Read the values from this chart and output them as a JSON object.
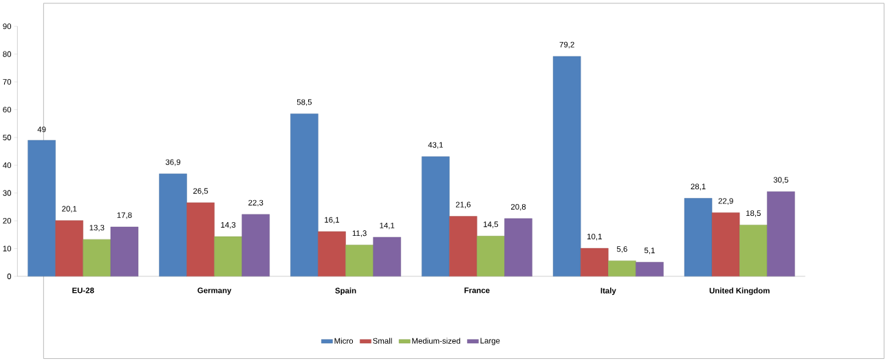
{
  "chart_data": {
    "type": "bar",
    "categories": [
      "EU-28",
      "Germany",
      "Spain",
      "France",
      "Italy",
      "United Kingdom"
    ],
    "series": [
      {
        "name": "Micro",
        "color": "#4f81bd",
        "values": [
          49,
          36.9,
          58.5,
          43.1,
          79.2,
          28.1
        ],
        "value_labels": [
          "49",
          "36,9",
          "58,5",
          "43,1",
          "79,2",
          "28,1"
        ]
      },
      {
        "name": "Small",
        "color": "#c0504d",
        "values": [
          20.1,
          26.5,
          16.1,
          21.6,
          10.1,
          22.9
        ],
        "value_labels": [
          "20,1",
          "26,5",
          "16,1",
          "21,6",
          "10,1",
          "22,9"
        ]
      },
      {
        "name": "Medium-sized",
        "color": "#9bbb59",
        "values": [
          13.3,
          14.3,
          11.3,
          14.5,
          5.6,
          18.5
        ],
        "value_labels": [
          "13,3",
          "14,3",
          "11,3",
          "14,5",
          "5,6",
          "18,5"
        ]
      },
      {
        "name": "Large",
        "color": "#8064a2",
        "values": [
          17.8,
          22.3,
          14.1,
          20.8,
          5.1,
          30.5
        ],
        "value_labels": [
          "17,8",
          "22,3",
          "14,1",
          "20,8",
          "5,1",
          "30,5"
        ]
      }
    ],
    "ylim": [
      0,
      90
    ],
    "yticks": [
      0,
      10,
      20,
      30,
      40,
      50,
      60,
      70,
      80,
      90
    ],
    "grid": false,
    "legend": "bottom"
  }
}
